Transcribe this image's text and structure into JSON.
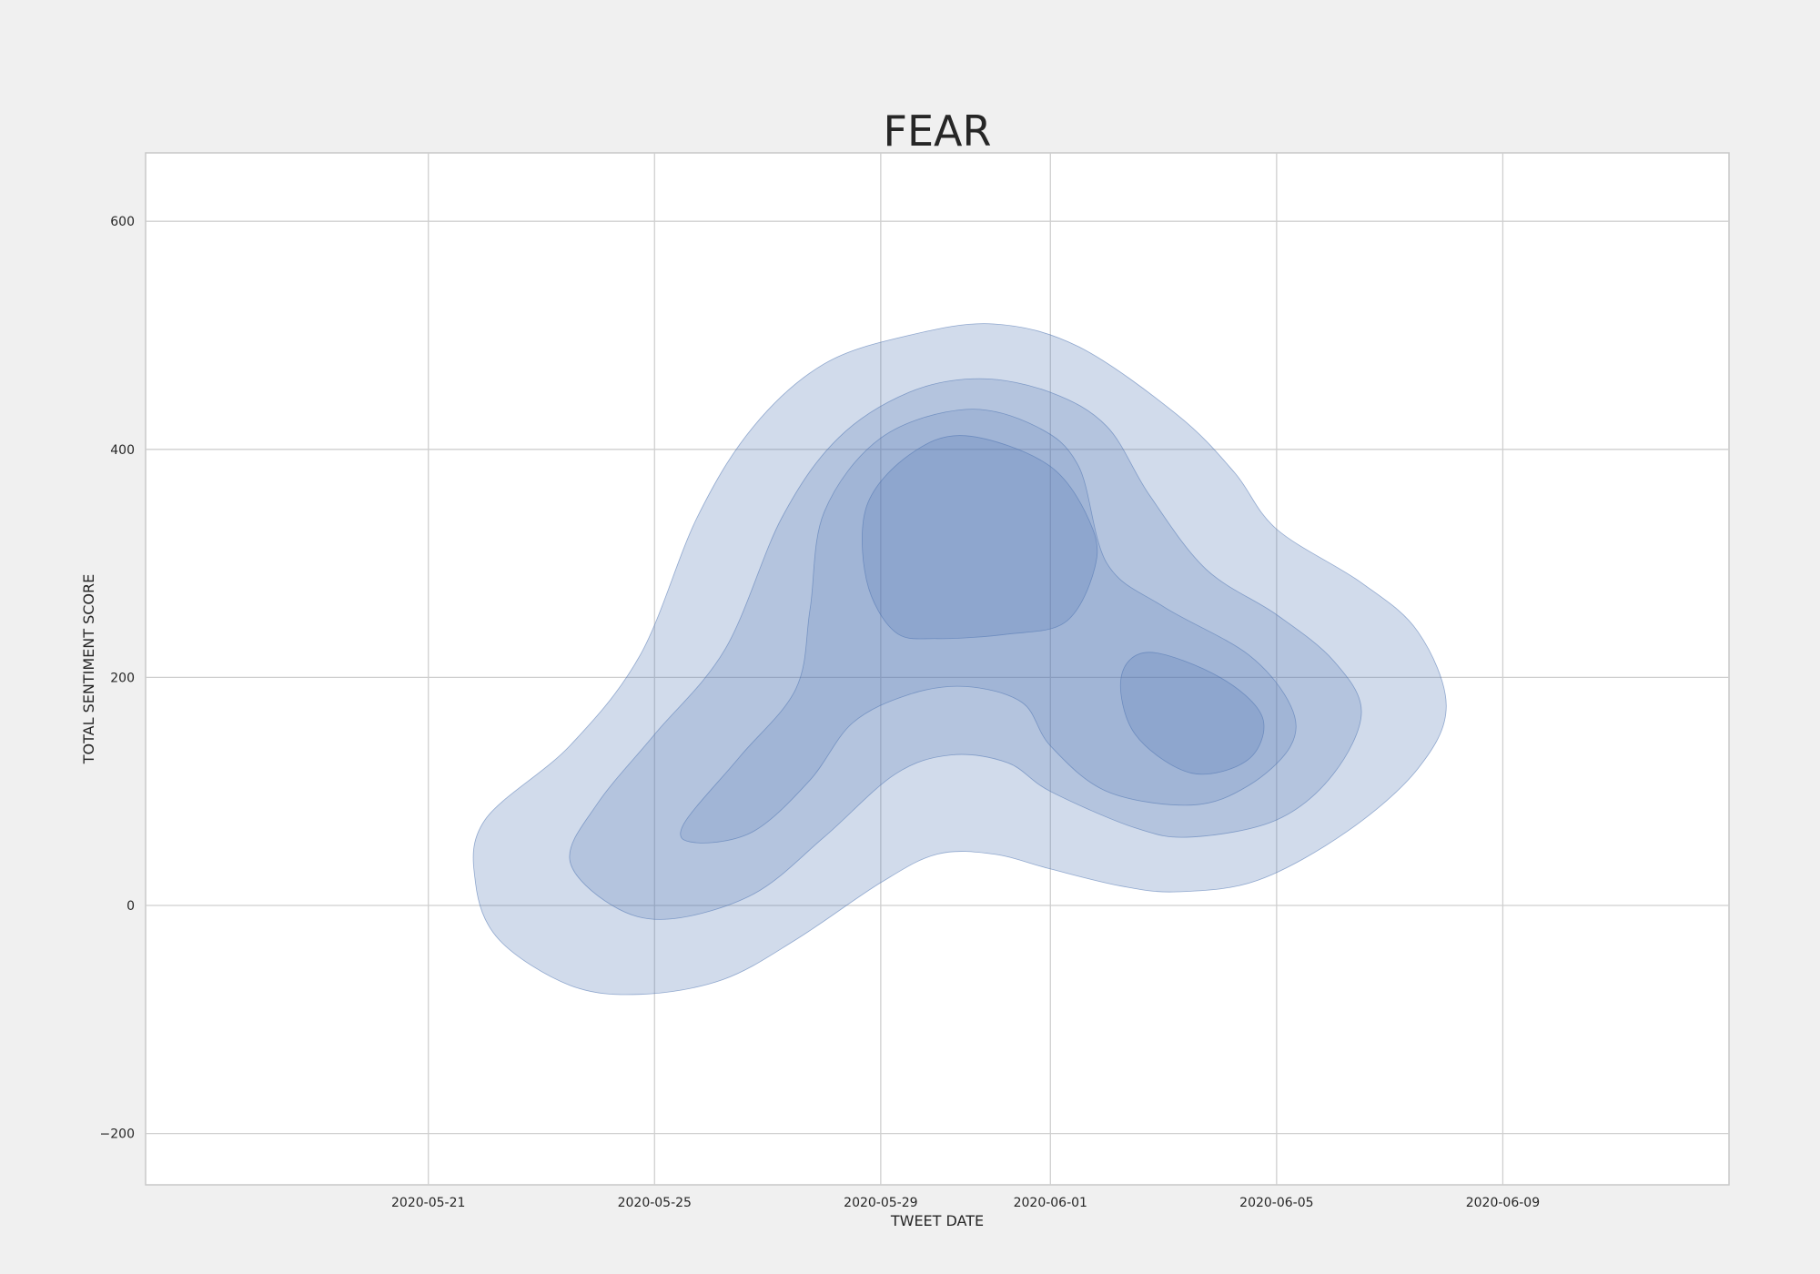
{
  "chart_data": {
    "type": "kde-contour",
    "title": "FEAR",
    "xlabel": "TWEET DATE",
    "ylabel": "TOTAL SENTIMENT SCORE",
    "x_axis_type": "date",
    "xlim": [
      "2020-05-16",
      "2020-06-13"
    ],
    "ylim": [
      -245,
      660
    ],
    "x_ticks": [
      "2020-05-21",
      "2020-05-25",
      "2020-05-29",
      "2020-06-01",
      "2020-06-05",
      "2020-06-09"
    ],
    "y_ticks": [
      -200,
      0,
      200,
      400,
      600
    ],
    "grid": true,
    "fill_color": "#4c72b0",
    "levels": [
      {
        "name": "level-1",
        "opacity": 0.26,
        "rings": [
          [
            [
              "2020-05-21 20:00",
              20
            ],
            [
              "2020-05-22 06:00",
              -30
            ],
            [
              "2020-05-23 12:00",
              -70
            ],
            [
              "2020-05-24 18:00",
              -78
            ],
            [
              "2020-05-26 05:00",
              -65
            ],
            [
              "2020-05-27 12:00",
              -30
            ],
            [
              "2020-05-29 00:00",
              20
            ],
            [
              "2020-05-30 00:00",
              45
            ],
            [
              "2020-05-31 00:00",
              45
            ],
            [
              "2020-06-01 00:00",
              32
            ],
            [
              "2020-06-02 06:00",
              17
            ],
            [
              "2020-06-03 06:00",
              12
            ],
            [
              "2020-06-04 16:00",
              22
            ],
            [
              "2020-06-06 06:00",
              65
            ],
            [
              "2020-06-07 12:00",
              120
            ],
            [
              "2020-06-08 00:00",
              175
            ],
            [
              "2020-06-07 12:00",
              240
            ],
            [
              "2020-06-06 12:00",
              283
            ],
            [
              "2020-06-05 00:00",
              330
            ],
            [
              "2020-06-04 06:00",
              380
            ],
            [
              "2020-06-03 06:00",
              430
            ],
            [
              "2020-06-01 12:00",
              490
            ],
            [
              "2020-05-31 00:00",
              510
            ],
            [
              "2020-05-29 12:00",
              500
            ],
            [
              "2020-05-28 00:00",
              475
            ],
            [
              "2020-05-26 18:00",
              420
            ],
            [
              "2020-05-25 18:00",
              340
            ],
            [
              "2020-05-24 18:00",
              220
            ],
            [
              "2020-05-23 12:00",
              140
            ],
            [
              "2020-05-22 00:00",
              75
            ]
          ]
        ]
      },
      {
        "name": "level-2",
        "opacity": 0.22,
        "rings": [
          [
            [
              "2020-05-23 12:00",
              40
            ],
            [
              "2020-05-24 06:00",
              0
            ],
            [
              "2020-05-25 06:00",
              -12
            ],
            [
              "2020-05-26 18:00",
              10
            ],
            [
              "2020-05-28 00:00",
              60
            ],
            [
              "2020-05-29 06:00",
              115
            ],
            [
              "2020-05-30 06:00",
              132
            ],
            [
              "2020-05-31 06:00",
              125
            ],
            [
              "2020-06-01 00:00",
              100
            ],
            [
              "2020-06-02 12:00",
              68
            ],
            [
              "2020-06-03 12:00",
              60
            ],
            [
              "2020-06-05 00:00",
              75
            ],
            [
              "2020-06-06 00:00",
              115
            ],
            [
              "2020-06-06 12:00",
              170
            ],
            [
              "2020-06-06 00:00",
              215
            ],
            [
              "2020-06-05 00:00",
              255
            ],
            [
              "2020-06-03 18:00",
              295
            ],
            [
              "2020-06-02 18:00",
              360
            ],
            [
              "2020-06-02 00:00",
              420
            ],
            [
              "2020-06-01 00:00",
              450
            ],
            [
              "2020-05-30 18:00",
              462
            ],
            [
              "2020-05-29 12:00",
              450
            ],
            [
              "2020-05-28 06:00",
              410
            ],
            [
              "2020-05-27 06:00",
              340
            ],
            [
              "2020-05-26 06:00",
              225
            ],
            [
              "2020-05-25 00:00",
              150
            ],
            [
              "2020-05-24 00:00",
              90
            ]
          ]
        ]
      },
      {
        "name": "level-3",
        "opacity": 0.18,
        "rings": [
          [
            [
              "2020-05-25 12:00",
              70
            ],
            [
              "2020-05-25 18:00",
              55
            ],
            [
              "2020-05-26 18:00",
              65
            ],
            [
              "2020-05-27 18:00",
              110
            ],
            [
              "2020-05-28 12:00",
              160
            ],
            [
              "2020-05-29 12:00",
              185
            ],
            [
              "2020-05-30 12:00",
              192
            ],
            [
              "2020-05-31 12:00",
              178
            ],
            [
              "2020-06-01 00:00",
              140
            ],
            [
              "2020-06-02 00:00",
              100
            ],
            [
              "2020-06-03 12:00",
              88
            ],
            [
              "2020-06-04 12:00",
              105
            ],
            [
              "2020-06-05 06:00",
              140
            ],
            [
              "2020-06-05 06:00",
              175
            ],
            [
              "2020-06-04 12:00",
              220
            ],
            [
              "2020-06-03 00:00",
              262
            ],
            [
              "2020-06-02 00:00",
              300
            ],
            [
              "2020-06-01 12:00",
              385
            ],
            [
              "2020-06-00 18:00",
              420
            ],
            [
              "2020-05-30 12:00",
              435
            ],
            [
              "2020-05-29 00:00",
              410
            ],
            [
              "2020-05-28 00:00",
              345
            ],
            [
              "2020-05-27 18:00",
              260
            ],
            [
              "2020-05-27 12:00",
              190
            ],
            [
              "2020-05-26 12:00",
              130
            ]
          ]
        ]
      },
      {
        "name": "level-4",
        "opacity": 0.22,
        "rings": [
          [
            [
              "2020-05-28 18:00",
              285
            ],
            [
              "2020-05-29 06:00",
              240
            ],
            [
              "2020-05-30 00:00",
              234
            ],
            [
              "2020-05-31 06:00",
              238
            ],
            [
              "2020-06-01 06:00",
              248
            ],
            [
              "2020-06-01 18:00",
              290
            ],
            [
              "2020-06-01 18:00",
              330
            ],
            [
              "2020-06-01 00:00",
              385
            ],
            [
              "2020-05-30 12:00",
              412
            ],
            [
              "2020-05-29 12:00",
              395
            ],
            [
              "2020-05-28 18:00",
              350
            ]
          ],
          [
            [
              "2020-06-02 06:00",
              200
            ],
            [
              "2020-06-02 12:00",
              150
            ],
            [
              "2020-06-03 12:00",
              116
            ],
            [
              "2020-06-04 12:00",
              128
            ],
            [
              "2020-06-04 18:00",
              165
            ],
            [
              "2020-06-04 00:00",
              200
            ],
            [
              "2020-06-02 18:00",
              222
            ]
          ]
        ]
      }
    ]
  }
}
